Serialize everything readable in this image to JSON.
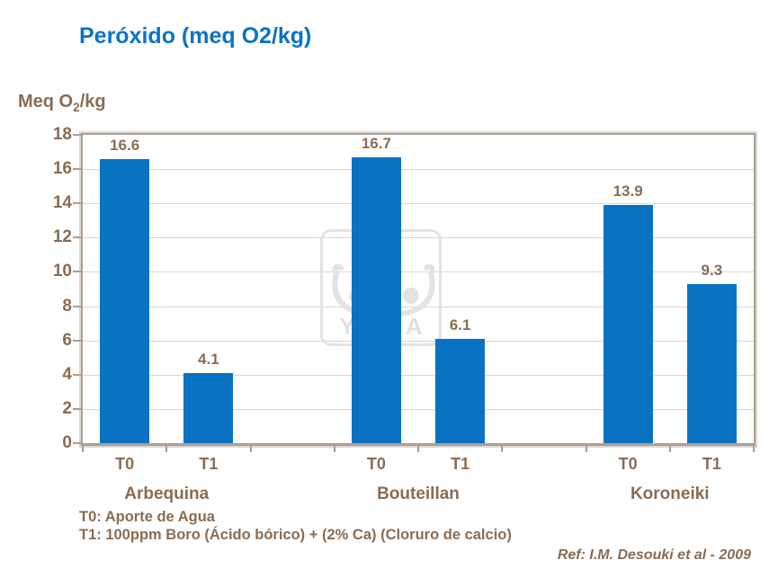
{
  "page_title": "Peróxido (meq O2/kg)",
  "colors": {
    "title_blue": "#0a73c8",
    "bar_blue": "#0a72c2",
    "text_brown": "#8a6c52",
    "frame": "#a89e95",
    "gridline": "#ded5cc",
    "watermark_gray": "#e5e2df"
  },
  "y_axis": {
    "label_pre": "Meq O",
    "label_sub": "2",
    "label_post": "/kg"
  },
  "chart_data": {
    "type": "bar",
    "title": "Peróxido (meq O2/kg)",
    "ylabel": "Meq O2/kg",
    "xlabel": "",
    "ylim": [
      0,
      18
    ],
    "ytick_step": 2,
    "grid": true,
    "legend": false,
    "bar_color": "#0a72c2",
    "groups": [
      "Arbequina",
      "Bouteillan",
      "Koroneiki"
    ],
    "treatments": [
      "T0",
      "T1"
    ],
    "categories": [
      "Arbequina T0",
      "Arbequina T1",
      "Bouteillan T0",
      "Bouteillan T1",
      "Koroneiki T0",
      "Koroneiki T1"
    ],
    "values": [
      16.6,
      4.1,
      16.7,
      6.1,
      13.9,
      9.3
    ]
  },
  "footnotes": {
    "t0": "T0: Aporte de Agua",
    "t1": "T1: 100ppm Boro (Ácido bórico) + (2% Ca) (Cloruro de calcio)"
  },
  "reference": "Ref: I.M. Desouki et al - 2009",
  "watermark": {
    "text": "YARA"
  }
}
